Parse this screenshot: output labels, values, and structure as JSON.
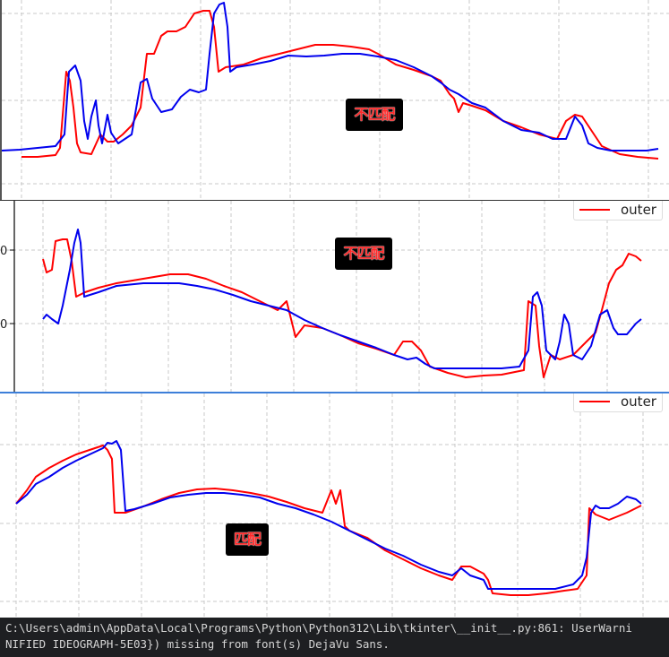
{
  "colors": {
    "series_a": "#0000ee",
    "series_b": "#ff0000",
    "badge_bg": "#000000",
    "badge_text": "#ff2a2a",
    "terminal_bg": "#1e1f22",
    "grid": "#c8c8c8"
  },
  "panels": [
    {
      "badge": "不匹配",
      "legend": "",
      "y_tick_labels": [],
      "series_blue": [
        [
          0,
          168
        ],
        [
          20,
          167
        ],
        [
          40,
          165
        ],
        [
          60,
          163
        ],
        [
          70,
          150
        ],
        [
          75,
          80
        ],
        [
          82,
          73
        ],
        [
          88,
          90
        ],
        [
          92,
          135
        ],
        [
          96,
          155
        ],
        [
          100,
          130
        ],
        [
          105,
          112
        ],
        [
          108,
          140
        ],
        [
          112,
          160
        ],
        [
          118,
          128
        ],
        [
          122,
          148
        ],
        [
          130,
          160
        ],
        [
          145,
          150
        ],
        [
          155,
          92
        ],
        [
          162,
          88
        ],
        [
          168,
          110
        ],
        [
          178,
          125
        ],
        [
          190,
          122
        ],
        [
          200,
          108
        ],
        [
          210,
          100
        ],
        [
          220,
          103
        ],
        [
          228,
          100
        ],
        [
          232,
          60
        ],
        [
          237,
          15
        ],
        [
          243,
          5
        ],
        [
          248,
          3
        ],
        [
          252,
          30
        ],
        [
          255,
          80
        ],
        [
          262,
          75
        ],
        [
          280,
          72
        ],
        [
          300,
          68
        ],
        [
          320,
          62
        ],
        [
          340,
          63
        ],
        [
          360,
          62
        ],
        [
          380,
          60
        ],
        [
          400,
          60
        ],
        [
          420,
          63
        ],
        [
          440,
          67
        ],
        [
          460,
          75
        ],
        [
          480,
          85
        ],
        [
          490,
          92
        ],
        [
          500,
          100
        ],
        [
          510,
          105
        ],
        [
          525,
          115
        ],
        [
          540,
          120
        ],
        [
          560,
          135
        ],
        [
          580,
          145
        ],
        [
          600,
          148
        ],
        [
          615,
          155
        ],
        [
          630,
          155
        ],
        [
          640,
          130
        ],
        [
          648,
          140
        ],
        [
          655,
          160
        ],
        [
          665,
          165
        ],
        [
          680,
          168
        ],
        [
          700,
          168
        ],
        [
          720,
          168
        ],
        [
          733,
          166
        ]
      ],
      "series_red": [
        [
          22,
          175
        ],
        [
          40,
          175
        ],
        [
          60,
          173
        ],
        [
          65,
          165
        ],
        [
          72,
          80
        ],
        [
          76,
          90
        ],
        [
          80,
          120
        ],
        [
          84,
          160
        ],
        [
          88,
          170
        ],
        [
          100,
          172
        ],
        [
          110,
          150
        ],
        [
          118,
          158
        ],
        [
          125,
          158
        ],
        [
          135,
          150
        ],
        [
          145,
          140
        ],
        [
          155,
          120
        ],
        [
          162,
          60
        ],
        [
          170,
          60
        ],
        [
          178,
          40
        ],
        [
          185,
          35
        ],
        [
          195,
          35
        ],
        [
          205,
          30
        ],
        [
          215,
          15
        ],
        [
          225,
          12
        ],
        [
          232,
          12
        ],
        [
          237,
          30
        ],
        [
          242,
          80
        ],
        [
          250,
          75
        ],
        [
          270,
          72
        ],
        [
          290,
          65
        ],
        [
          310,
          60
        ],
        [
          330,
          55
        ],
        [
          350,
          50
        ],
        [
          370,
          50
        ],
        [
          390,
          52
        ],
        [
          410,
          55
        ],
        [
          420,
          60
        ],
        [
          440,
          72
        ],
        [
          460,
          78
        ],
        [
          480,
          85
        ],
        [
          490,
          90
        ],
        [
          500,
          105
        ],
        [
          505,
          110
        ],
        [
          510,
          125
        ],
        [
          515,
          115
        ],
        [
          525,
          118
        ],
        [
          540,
          123
        ],
        [
          560,
          135
        ],
        [
          580,
          142
        ],
        [
          600,
          150
        ],
        [
          620,
          155
        ],
        [
          630,
          135
        ],
        [
          640,
          128
        ],
        [
          648,
          130
        ],
        [
          660,
          148
        ],
        [
          670,
          163
        ],
        [
          690,
          172
        ],
        [
          710,
          175
        ],
        [
          733,
          177
        ]
      ]
    },
    {
      "badge": "不匹配",
      "legend": "outer",
      "y_tick_labels": [
        "0",
        "0"
      ],
      "series_blue": [
        [
          48,
          355
        ],
        [
          52,
          350
        ],
        [
          58,
          355
        ],
        [
          65,
          360
        ],
        [
          70,
          340
        ],
        [
          78,
          300
        ],
        [
          83,
          270
        ],
        [
          87,
          255
        ],
        [
          90,
          270
        ],
        [
          94,
          330
        ],
        [
          110,
          325
        ],
        [
          130,
          318
        ],
        [
          160,
          315
        ],
        [
          180,
          315
        ],
        [
          200,
          315
        ],
        [
          220,
          318
        ],
        [
          240,
          322
        ],
        [
          260,
          328
        ],
        [
          280,
          335
        ],
        [
          300,
          340
        ],
        [
          320,
          345
        ],
        [
          340,
          356
        ],
        [
          360,
          365
        ],
        [
          380,
          373
        ],
        [
          400,
          380
        ],
        [
          420,
          387
        ],
        [
          440,
          395
        ],
        [
          455,
          400
        ],
        [
          465,
          398
        ],
        [
          475,
          405
        ],
        [
          485,
          410
        ],
        [
          500,
          410
        ],
        [
          520,
          410
        ],
        [
          540,
          410
        ],
        [
          560,
          410
        ],
        [
          580,
          408
        ],
        [
          590,
          390
        ],
        [
          595,
          330
        ],
        [
          600,
          325
        ],
        [
          605,
          340
        ],
        [
          610,
          390
        ],
        [
          620,
          400
        ],
        [
          625,
          380
        ],
        [
          630,
          350
        ],
        [
          635,
          360
        ],
        [
          640,
          395
        ],
        [
          650,
          400
        ],
        [
          660,
          385
        ],
        [
          670,
          350
        ],
        [
          678,
          345
        ],
        [
          685,
          365
        ],
        [
          690,
          372
        ],
        [
          700,
          372
        ],
        [
          710,
          360
        ],
        [
          716,
          355
        ]
      ],
      "series_red": [
        [
          48,
          288
        ],
        [
          52,
          303
        ],
        [
          58,
          300
        ],
        [
          62,
          268
        ],
        [
          70,
          266
        ],
        [
          75,
          266
        ],
        [
          80,
          290
        ],
        [
          85,
          330
        ],
        [
          95,
          325
        ],
        [
          110,
          320
        ],
        [
          130,
          315
        ],
        [
          160,
          310
        ],
        [
          190,
          305
        ],
        [
          210,
          305
        ],
        [
          230,
          310
        ],
        [
          250,
          318
        ],
        [
          270,
          325
        ],
        [
          290,
          335
        ],
        [
          310,
          345
        ],
        [
          320,
          335
        ],
        [
          325,
          355
        ],
        [
          330,
          375
        ],
        [
          340,
          362
        ],
        [
          360,
          365
        ],
        [
          380,
          373
        ],
        [
          400,
          382
        ],
        [
          420,
          388
        ],
        [
          440,
          395
        ],
        [
          450,
          380
        ],
        [
          460,
          380
        ],
        [
          470,
          390
        ],
        [
          480,
          408
        ],
        [
          500,
          415
        ],
        [
          520,
          420
        ],
        [
          540,
          418
        ],
        [
          560,
          417
        ],
        [
          585,
          412
        ],
        [
          590,
          335
        ],
        [
          598,
          340
        ],
        [
          602,
          385
        ],
        [
          607,
          420
        ],
        [
          615,
          395
        ],
        [
          625,
          400
        ],
        [
          640,
          395
        ],
        [
          655,
          380
        ],
        [
          665,
          370
        ],
        [
          672,
          345
        ],
        [
          680,
          315
        ],
        [
          688,
          300
        ],
        [
          695,
          295
        ],
        [
          702,
          282
        ],
        [
          710,
          285
        ],
        [
          716,
          290
        ]
      ]
    },
    {
      "badge": "匹配",
      "legend": "outer",
      "y_tick_labels": [],
      "series_blue": [
        [
          18,
          560
        ],
        [
          30,
          550
        ],
        [
          40,
          538
        ],
        [
          55,
          530
        ],
        [
          70,
          520
        ],
        [
          85,
          512
        ],
        [
          100,
          505
        ],
        [
          115,
          498
        ],
        [
          120,
          492
        ],
        [
          125,
          493
        ],
        [
          130,
          490
        ],
        [
          135,
          500
        ],
        [
          140,
          568
        ],
        [
          150,
          566
        ],
        [
          170,
          560
        ],
        [
          190,
          553
        ],
        [
          210,
          550
        ],
        [
          230,
          548
        ],
        [
          250,
          548
        ],
        [
          270,
          550
        ],
        [
          290,
          553
        ],
        [
          310,
          560
        ],
        [
          330,
          565
        ],
        [
          350,
          572
        ],
        [
          370,
          580
        ],
        [
          390,
          590
        ],
        [
          410,
          600
        ],
        [
          430,
          610
        ],
        [
          450,
          618
        ],
        [
          470,
          628
        ],
        [
          490,
          636
        ],
        [
          505,
          640
        ],
        [
          515,
          632
        ],
        [
          525,
          640
        ],
        [
          540,
          645
        ],
        [
          545,
          655
        ],
        [
          560,
          655
        ],
        [
          580,
          655
        ],
        [
          600,
          655
        ],
        [
          620,
          655
        ],
        [
          640,
          650
        ],
        [
          650,
          640
        ],
        [
          655,
          620
        ],
        [
          660,
          570
        ],
        [
          665,
          562
        ],
        [
          670,
          565
        ],
        [
          680,
          565
        ],
        [
          690,
          560
        ],
        [
          700,
          552
        ],
        [
          710,
          555
        ],
        [
          716,
          560
        ]
      ],
      "series_red": [
        [
          18,
          560
        ],
        [
          30,
          545
        ],
        [
          40,
          530
        ],
        [
          55,
          520
        ],
        [
          70,
          512
        ],
        [
          85,
          505
        ],
        [
          100,
          500
        ],
        [
          115,
          495
        ],
        [
          120,
          500
        ],
        [
          125,
          510
        ],
        [
          128,
          570
        ],
        [
          140,
          570
        ],
        [
          160,
          563
        ],
        [
          180,
          555
        ],
        [
          200,
          548
        ],
        [
          220,
          544
        ],
        [
          240,
          543
        ],
        [
          260,
          545
        ],
        [
          280,
          548
        ],
        [
          300,
          552
        ],
        [
          320,
          558
        ],
        [
          340,
          565
        ],
        [
          360,
          570
        ],
        [
          370,
          545
        ],
        [
          375,
          560
        ],
        [
          380,
          545
        ],
        [
          385,
          585
        ],
        [
          390,
          590
        ],
        [
          410,
          598
        ],
        [
          430,
          612
        ],
        [
          450,
          622
        ],
        [
          470,
          632
        ],
        [
          490,
          640
        ],
        [
          505,
          645
        ],
        [
          515,
          630
        ],
        [
          525,
          630
        ],
        [
          540,
          638
        ],
        [
          545,
          645
        ],
        [
          550,
          660
        ],
        [
          570,
          662
        ],
        [
          590,
          662
        ],
        [
          610,
          660
        ],
        [
          630,
          657
        ],
        [
          645,
          655
        ],
        [
          655,
          640
        ],
        [
          658,
          565
        ],
        [
          665,
          572
        ],
        [
          680,
          578
        ],
        [
          700,
          570
        ],
        [
          716,
          562
        ]
      ]
    }
  ],
  "terminal": {
    "line1": "C:\\Users\\admin\\AppData\\Local\\Programs\\Python\\Python312\\Lib\\tkinter\\__init__.py:861: UserWarni",
    "line2": "NIFIED IDEOGRAPH-5E03}) missing from font(s) DejaVu Sans."
  }
}
